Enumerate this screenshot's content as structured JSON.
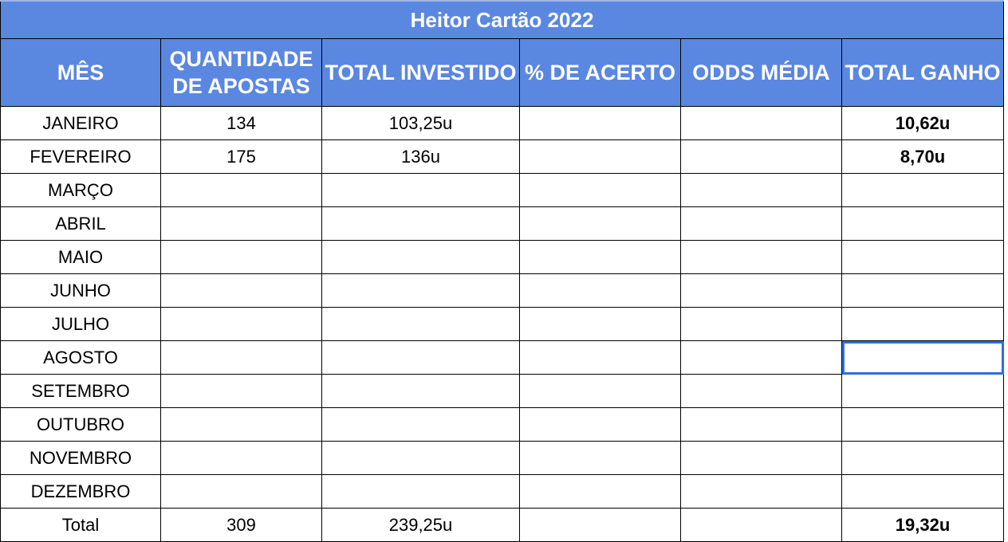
{
  "title": "Heitor Cartão 2022",
  "colors": {
    "header_bg": "#5a87e0",
    "header_text": "#ffffff",
    "gain_text": "#3c8a3c",
    "selection_border": "#2f6fd6"
  },
  "headers": {
    "month": "MÊS",
    "bets_line1": "QUANTIDADE",
    "bets_line2": "DE APOSTAS",
    "invested": "TOTAL INVESTIDO",
    "hit_rate": "% DE ACERTO",
    "avg_odds": "ODDS MÉDIA",
    "total_won": "TOTAL GANHO"
  },
  "rows": [
    {
      "month": "JANEIRO",
      "bets": "134",
      "invested": "103,25u",
      "hit_rate": "",
      "avg_odds": "",
      "total_won": "10,62u"
    },
    {
      "month": "FEVEREIRO",
      "bets": "175",
      "invested": "136u",
      "hit_rate": "",
      "avg_odds": "",
      "total_won": "8,70u"
    },
    {
      "month": "MARÇO",
      "bets": "",
      "invested": "",
      "hit_rate": "",
      "avg_odds": "",
      "total_won": ""
    },
    {
      "month": "ABRIL",
      "bets": "",
      "invested": "",
      "hit_rate": "",
      "avg_odds": "",
      "total_won": ""
    },
    {
      "month": "MAIO",
      "bets": "",
      "invested": "",
      "hit_rate": "",
      "avg_odds": "",
      "total_won": ""
    },
    {
      "month": "JUNHO",
      "bets": "",
      "invested": "",
      "hit_rate": "",
      "avg_odds": "",
      "total_won": ""
    },
    {
      "month": "JULHO",
      "bets": "",
      "invested": "",
      "hit_rate": "",
      "avg_odds": "",
      "total_won": ""
    },
    {
      "month": "AGOSTO",
      "bets": "",
      "invested": "",
      "hit_rate": "",
      "avg_odds": "",
      "total_won": ""
    },
    {
      "month": "SETEMBRO",
      "bets": "",
      "invested": "",
      "hit_rate": "",
      "avg_odds": "",
      "total_won": ""
    },
    {
      "month": "OUTUBRO",
      "bets": "",
      "invested": "",
      "hit_rate": "",
      "avg_odds": "",
      "total_won": ""
    },
    {
      "month": "NOVEMBRO",
      "bets": "",
      "invested": "",
      "hit_rate": "",
      "avg_odds": "",
      "total_won": ""
    },
    {
      "month": "DEZEMBRO",
      "bets": "",
      "invested": "",
      "hit_rate": "",
      "avg_odds": "",
      "total_won": ""
    },
    {
      "month": "Total",
      "bets": "309",
      "invested": "239,25u",
      "hit_rate": "",
      "avg_odds": "",
      "total_won": "19,32u"
    }
  ]
}
